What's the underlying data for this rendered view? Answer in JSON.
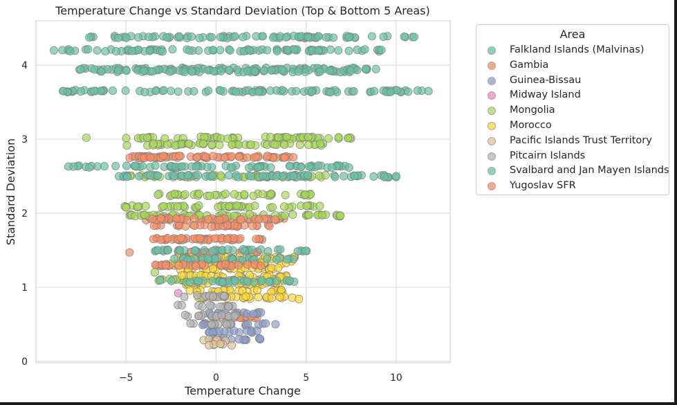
{
  "chart_data": {
    "type": "scatter",
    "title": "Temperature Change vs Standard Deviation (Top & Bottom 5 Areas)",
    "xlabel": "Temperature Change",
    "ylabel": "Standard Deviation",
    "xlim": [
      -10,
      13
    ],
    "ylim": [
      -0.02,
      4.6
    ],
    "xticks": [
      -5,
      0,
      5,
      10
    ],
    "xtick_labels": [
      "−5",
      "0",
      "5",
      "10"
    ],
    "yticks": [
      0,
      1,
      2,
      3,
      4
    ],
    "ytick_labels": [
      "0",
      "1",
      "2",
      "3",
      "4"
    ],
    "grid": true,
    "legend": {
      "title": "Area",
      "placement": "outside-right"
    },
    "series": [
      {
        "name": "Falkland Islands (Malvinas)",
        "color": "#66c2a5",
        "bands": [
          {
            "y": 4.38,
            "x": [
              -7.2,
              11.0
            ]
          },
          {
            "y": 4.2,
            "x": [
              -9.0,
              9.5
            ]
          },
          {
            "y": 3.95,
            "x": [
              -7.8,
              9.0
            ]
          },
          {
            "y": 3.92,
            "x": [
              -6.5,
              8.0
            ]
          },
          {
            "y": 3.65,
            "x": [
              -8.5,
              11.8
            ]
          }
        ],
        "extra_points": [
          {
            "x": -8.5,
            "y": 3.65
          },
          {
            "x": 11.8,
            "y": 3.65
          },
          {
            "x": -9.0,
            "y": 4.2
          },
          {
            "x": 11.0,
            "y": 4.38
          }
        ]
      },
      {
        "name": "Gambia",
        "color": "#fc8d62",
        "bands": [
          {
            "y": 2.76,
            "x": [
              -5.0,
              4.5
            ]
          },
          {
            "y": 1.92,
            "x": [
              -4.0,
              3.8
            ]
          },
          {
            "y": 1.83,
            "x": [
              -3.5,
              3.5
            ]
          },
          {
            "y": 1.65,
            "x": [
              -3.5,
              3.0
            ]
          },
          {
            "y": 1.47,
            "x": [
              -3.0,
              2.5
            ]
          },
          {
            "y": 1.3,
            "x": [
              -3.5,
              3.0
            ]
          },
          {
            "y": 0.6,
            "x": [
              -0.5,
              2.5
            ]
          }
        ],
        "extra_points": [
          {
            "x": -4.8,
            "y": 1.47
          }
        ]
      },
      {
        "name": "Guinea-Bissau",
        "color": "#8da0cb",
        "bands": [
          {
            "y": 0.65,
            "x": [
              -0.5,
              2.8
            ]
          },
          {
            "y": 0.5,
            "x": [
              -0.8,
              3.0
            ]
          },
          {
            "y": 0.4,
            "x": [
              -0.8,
              2.5
            ]
          },
          {
            "y": 0.3,
            "x": [
              -0.5,
              2.5
            ]
          }
        ],
        "extra_points": [
          {
            "x": 3.3,
            "y": 0.5
          }
        ]
      },
      {
        "name": "Midway Island",
        "color": "#e78ac3",
        "bands": [],
        "extra_points": [
          {
            "x": -2.1,
            "y": 0.92
          },
          {
            "x": 0.6,
            "y": 0.55
          }
        ]
      },
      {
        "name": "Mongolia",
        "color": "#a6d854",
        "bands": [
          {
            "y": 3.02,
            "x": [
              -5.2,
              7.5
            ]
          },
          {
            "y": 2.93,
            "x": [
              -5.0,
              6.0
            ]
          },
          {
            "y": 2.5,
            "x": [
              -5.5,
              6.5
            ]
          },
          {
            "y": 2.25,
            "x": [
              -3.5,
              5.5
            ]
          },
          {
            "y": 2.09,
            "x": [
              -5.2,
              6.0
            ]
          },
          {
            "y": 1.97,
            "x": [
              -5.0,
              7.0
            ]
          },
          {
            "y": 1.1,
            "x": [
              -3.2,
              4.5
            ]
          }
        ],
        "extra_points": [
          {
            "x": -7.2,
            "y": 3.02
          },
          {
            "x": 6.9,
            "y": 1.97
          },
          {
            "x": -3.4,
            "y": 1.2
          }
        ]
      },
      {
        "name": "Morocco",
        "color": "#ffd92f",
        "bands": [
          {
            "y": 1.4,
            "x": [
              -2.5,
              4.5
            ]
          },
          {
            "y": 1.32,
            "x": [
              -2.5,
              4.0
            ]
          },
          {
            "y": 1.25,
            "x": [
              -2.0,
              4.0
            ]
          },
          {
            "y": 1.15,
            "x": [
              -2.0,
              4.2
            ]
          },
          {
            "y": 1.05,
            "x": [
              -2.0,
              3.5
            ]
          },
          {
            "y": 0.95,
            "x": [
              -1.5,
              3.8
            ]
          },
          {
            "y": 0.86,
            "x": [
              -1.5,
              4.6
            ]
          }
        ],
        "extra_points": [
          {
            "x": 4.2,
            "y": 1.35
          },
          {
            "x": 4.6,
            "y": 0.84
          }
        ]
      },
      {
        "name": "Pacific Islands Trust Territory",
        "color": "#e5c494",
        "bands": [
          {
            "y": 0.28,
            "x": [
              -0.8,
              0.8
            ]
          },
          {
            "y": 0.22,
            "x": [
              -0.5,
              1.0
            ]
          }
        ],
        "extra_points": []
      },
      {
        "name": "Pitcairn Islands",
        "color": "#b3b3b3",
        "bands": [
          {
            "y": 0.88,
            "x": [
              -2.6,
              0.5
            ]
          },
          {
            "y": 0.75,
            "x": [
              -2.2,
              1.0
            ]
          },
          {
            "y": 0.62,
            "x": [
              -2.0,
              1.2
            ]
          },
          {
            "y": 0.5,
            "x": [
              -1.5,
              1.0
            ]
          }
        ],
        "extra_points": []
      },
      {
        "name": "Svalbard and Jan Mayen Islands",
        "color": "#66c2a5",
        "bands": [
          {
            "y": 2.63,
            "x": [
              -8.2,
              7.5
            ]
          },
          {
            "y": 2.5,
            "x": [
              -5.5,
              10.0
            ]
          },
          {
            "y": 1.5,
            "x": [
              -3.5,
              5.2
            ]
          },
          {
            "y": 1.38,
            "x": [
              -3.0,
              4.5
            ]
          },
          {
            "y": 1.08,
            "x": [
              -3.3,
              4.5
            ]
          }
        ],
        "extra_points": [
          {
            "x": -8.2,
            "y": 2.63
          },
          {
            "x": 10.0,
            "y": 2.5
          }
        ]
      },
      {
        "name": "Yugoslav SFR",
        "color": "#fc8d62",
        "bands": [
          {
            "y": 2.76,
            "x": [
              -4.5,
              4.0
            ]
          },
          {
            "y": 1.92,
            "x": [
              -4.0,
              3.5
            ]
          },
          {
            "y": 1.65,
            "x": [
              -3.0,
              2.5
            ]
          },
          {
            "y": 1.3,
            "x": [
              -3.2,
              2.5
            ]
          }
        ],
        "extra_points": []
      }
    ]
  }
}
